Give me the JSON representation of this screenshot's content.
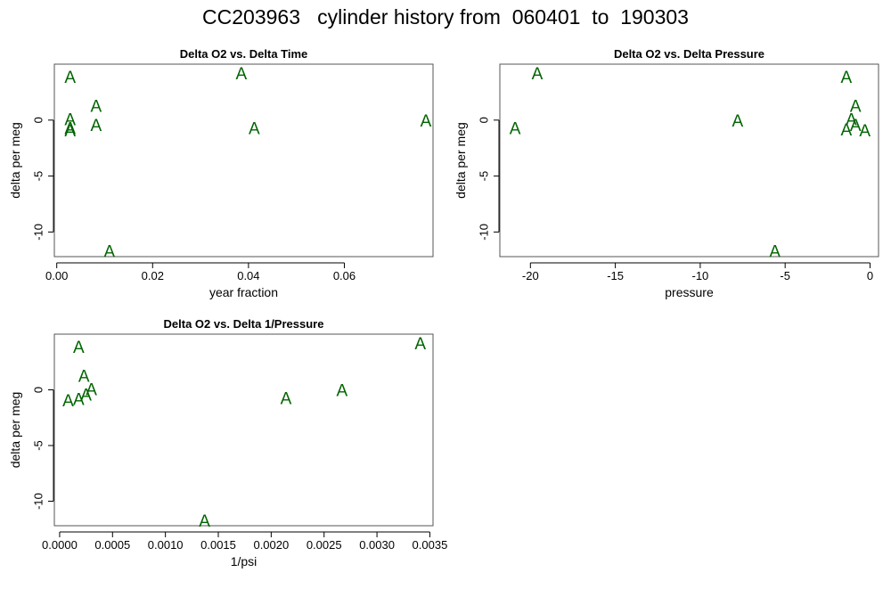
{
  "figure_title": "CC203963   cylinder history from  060401  to  190303",
  "point_color": "#006400",
  "chart_data": [
    {
      "type": "scatter",
      "title": "Delta O2 vs. Delta Time",
      "xlabel": "year fraction",
      "ylabel": "delta per meg",
      "marker": "A",
      "xlim": [
        -0.0005,
        0.0785
      ],
      "ylim": [
        -12.2,
        5.0
      ],
      "xticks": [
        {
          "v": 0.0,
          "label": "0.00"
        },
        {
          "v": 0.02,
          "label": "0.02"
        },
        {
          "v": 0.04,
          "label": "0.04"
        },
        {
          "v": 0.06,
          "label": "0.06"
        }
      ],
      "yticks": [
        {
          "v": 0,
          "label": "0"
        },
        {
          "v": -5,
          "label": "-5"
        },
        {
          "v": -10,
          "label": "-10"
        }
      ],
      "points": [
        {
          "x": 0.0028,
          "y": 3.9
        },
        {
          "x": 0.0028,
          "y": 0.1
        },
        {
          "x": 0.0028,
          "y": -0.7
        },
        {
          "x": 0.0028,
          "y": -0.9
        },
        {
          "x": 0.0082,
          "y": 1.3
        },
        {
          "x": 0.0082,
          "y": -0.4
        },
        {
          "x": 0.011,
          "y": -11.7
        },
        {
          "x": 0.0385,
          "y": 4.2
        },
        {
          "x": 0.0412,
          "y": -0.7
        },
        {
          "x": 0.077,
          "y": 0.0
        }
      ]
    },
    {
      "type": "scatter",
      "title": "Delta O2 vs. Delta Pressure",
      "xlabel": "pressure",
      "ylabel": "delta per meg",
      "marker": "A",
      "xlim": [
        -21.8,
        0.5
      ],
      "ylim": [
        -12.2,
        5.0
      ],
      "xticks": [
        {
          "v": -20,
          "label": "-20"
        },
        {
          "v": -15,
          "label": "-15"
        },
        {
          "v": -10,
          "label": "-10"
        },
        {
          "v": -5,
          "label": "-5"
        },
        {
          "v": 0,
          "label": "0"
        }
      ],
      "yticks": [
        {
          "v": 0,
          "label": "0"
        },
        {
          "v": -5,
          "label": "-5"
        },
        {
          "v": -10,
          "label": "-10"
        }
      ],
      "points": [
        {
          "x": -20.9,
          "y": -0.7
        },
        {
          "x": -19.6,
          "y": 4.2
        },
        {
          "x": -7.8,
          "y": 0.0
        },
        {
          "x": -5.6,
          "y": -11.7
        },
        {
          "x": -1.4,
          "y": 3.9
        },
        {
          "x": -1.4,
          "y": -0.8
        },
        {
          "x": -1.1,
          "y": 0.1
        },
        {
          "x": -0.85,
          "y": 1.3
        },
        {
          "x": -0.85,
          "y": -0.4
        },
        {
          "x": -0.3,
          "y": -0.9
        }
      ]
    },
    {
      "type": "scatter",
      "title": "Delta O2 vs. Delta 1/Pressure",
      "xlabel": "1/psi",
      "ylabel": "delta per meg",
      "marker": "A",
      "xlim": [
        -5e-05,
        0.00353
      ],
      "ylim": [
        -12.2,
        5.0
      ],
      "xticks": [
        {
          "v": 0.0,
          "label": "0.0000"
        },
        {
          "v": 0.0005,
          "label": "0.0005"
        },
        {
          "v": 0.001,
          "label": "0.0010"
        },
        {
          "v": 0.0015,
          "label": "0.0015"
        },
        {
          "v": 0.002,
          "label": "0.0020"
        },
        {
          "v": 0.0025,
          "label": "0.0025"
        },
        {
          "v": 0.003,
          "label": "0.0030"
        },
        {
          "v": 0.0035,
          "label": "0.0035"
        }
      ],
      "yticks": [
        {
          "v": 0,
          "label": "0"
        },
        {
          "v": -5,
          "label": "-5"
        },
        {
          "v": -10,
          "label": "-10"
        }
      ],
      "points": [
        {
          "x": 8e-05,
          "y": -0.9
        },
        {
          "x": 0.00018,
          "y": 3.9
        },
        {
          "x": 0.00018,
          "y": -0.8
        },
        {
          "x": 0.00023,
          "y": 1.3
        },
        {
          "x": 0.00025,
          "y": -0.4
        },
        {
          "x": 0.0003,
          "y": 0.1
        },
        {
          "x": 0.00137,
          "y": -11.7
        },
        {
          "x": 0.00214,
          "y": -0.7
        },
        {
          "x": 0.00267,
          "y": 0.0
        },
        {
          "x": 0.00341,
          "y": 4.2
        }
      ]
    }
  ]
}
